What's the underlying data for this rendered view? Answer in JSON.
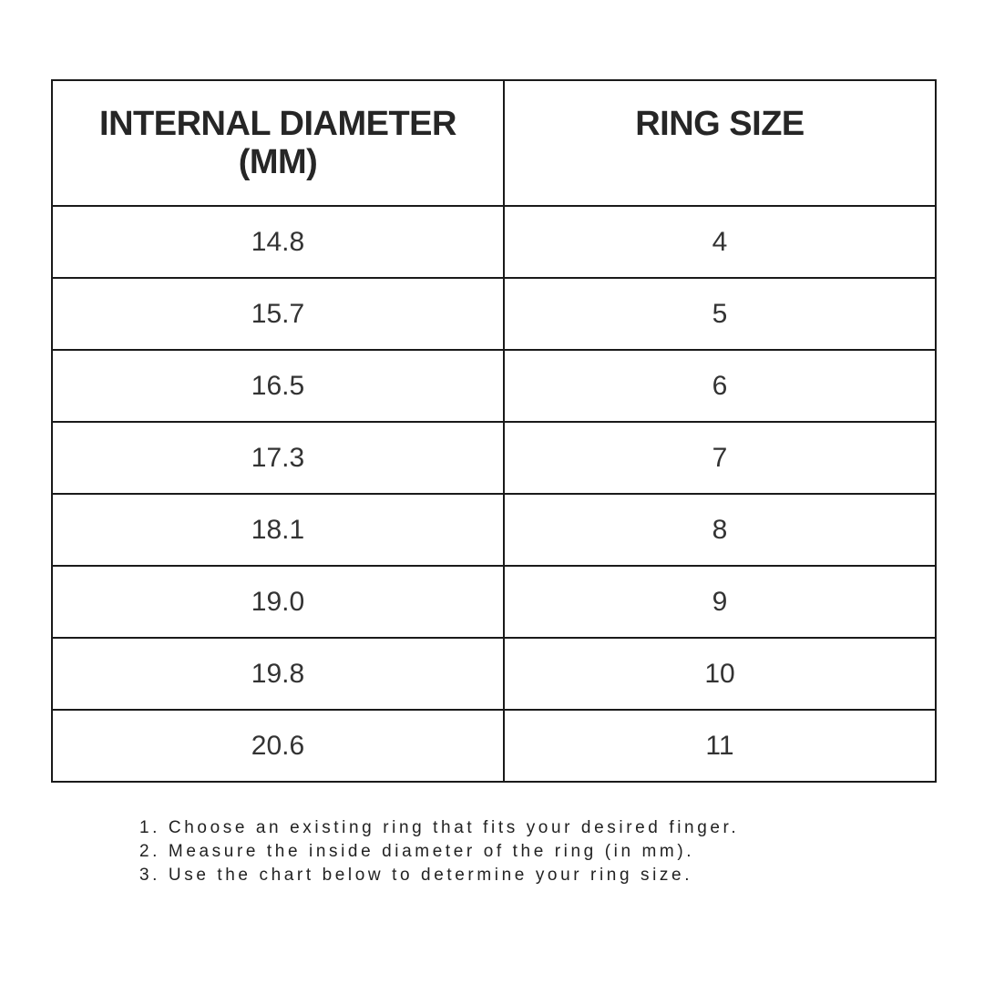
{
  "table": {
    "headers": [
      "INTERNAL DIAMETER (MM)",
      "RING SIZE"
    ],
    "rows": [
      [
        "14.8",
        "4"
      ],
      [
        "15.7",
        "5"
      ],
      [
        "16.5",
        "6"
      ],
      [
        "17.3",
        "7"
      ],
      [
        "18.1",
        "8"
      ],
      [
        "19.0",
        "9"
      ],
      [
        "19.8",
        "10"
      ],
      [
        "20.6",
        "11"
      ]
    ]
  },
  "instructions": [
    "1. Choose an existing ring that fits your desired finger.",
    "2. Measure the inside diameter of the ring (in mm).",
    "3. Use the chart below to determine your ring size."
  ]
}
